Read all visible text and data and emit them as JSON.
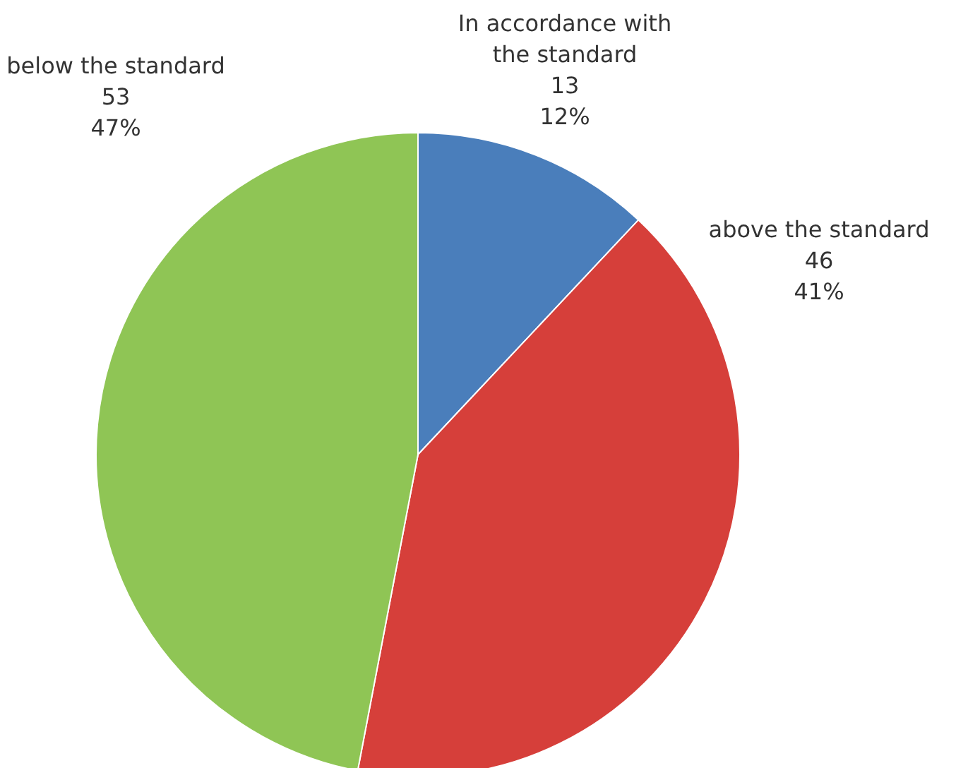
{
  "chart_data": {
    "type": "pie",
    "categories": [
      "In accordance with the standard",
      "above the standard",
      "below the standard"
    ],
    "values": [
      12,
      41,
      47
    ],
    "colors": [
      "#4a7ebb",
      "#d63f3a",
      "#8fc555"
    ],
    "value_labels": [
      "12%",
      "41%",
      "47%"
    ],
    "annotations": [
      "13",
      "46",
      "53"
    ]
  }
}
